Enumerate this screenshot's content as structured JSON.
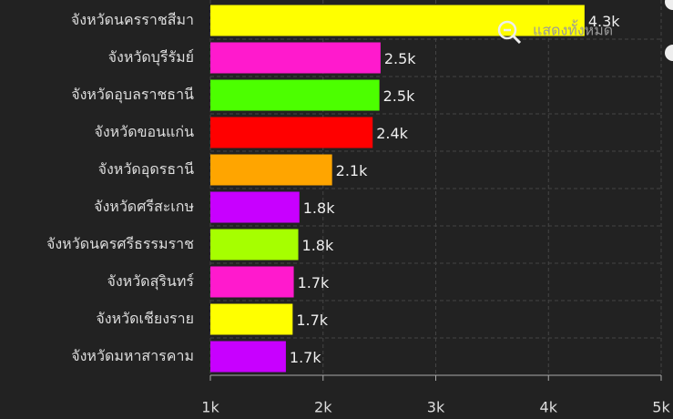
{
  "chart_data": {
    "type": "bar",
    "orientation": "horizontal",
    "categories": [
      "จังหวัดนครราชสีมา",
      "จังหวัดบุรีรัมย์",
      "จังหวัดอุบลราชธานี",
      "จังหวัดขอนแก่น",
      "จังหวัดอุดรธานี",
      "จังหวัดศรีสะเกษ",
      "จังหวัดนครศรีธรรมราช",
      "จังหวัดสุรินทร์",
      "จังหวัดเชียงราย",
      "จังหวัดมหาสารคาม"
    ],
    "values": [
      4320,
      2510,
      2500,
      2440,
      2080,
      1790,
      1780,
      1740,
      1730,
      1670
    ],
    "value_labels": [
      "4.3k",
      "2.5k",
      "2.5k",
      "2.4k",
      "2.1k",
      "1.8k",
      "1.8k",
      "1.7k",
      "1.7k",
      "1.7k"
    ],
    "colors": [
      "#ffff00",
      "#ff1acd",
      "#4cff00",
      "#ff0000",
      "#ffa500",
      "#c800ff",
      "#a6ff00",
      "#ff1acd",
      "#ffff00",
      "#c800ff"
    ],
    "xlim": [
      1000,
      5000
    ],
    "xticks": [
      {
        "value": 1000,
        "label": "1k"
      },
      {
        "value": 2000,
        "label": "2k"
      },
      {
        "value": 3000,
        "label": "3k"
      },
      {
        "value": 4000,
        "label": "4k"
      },
      {
        "value": 5000,
        "label": "5k"
      }
    ],
    "grid": true,
    "reset_zoom_label": "แสดงทั้งหมด"
  }
}
